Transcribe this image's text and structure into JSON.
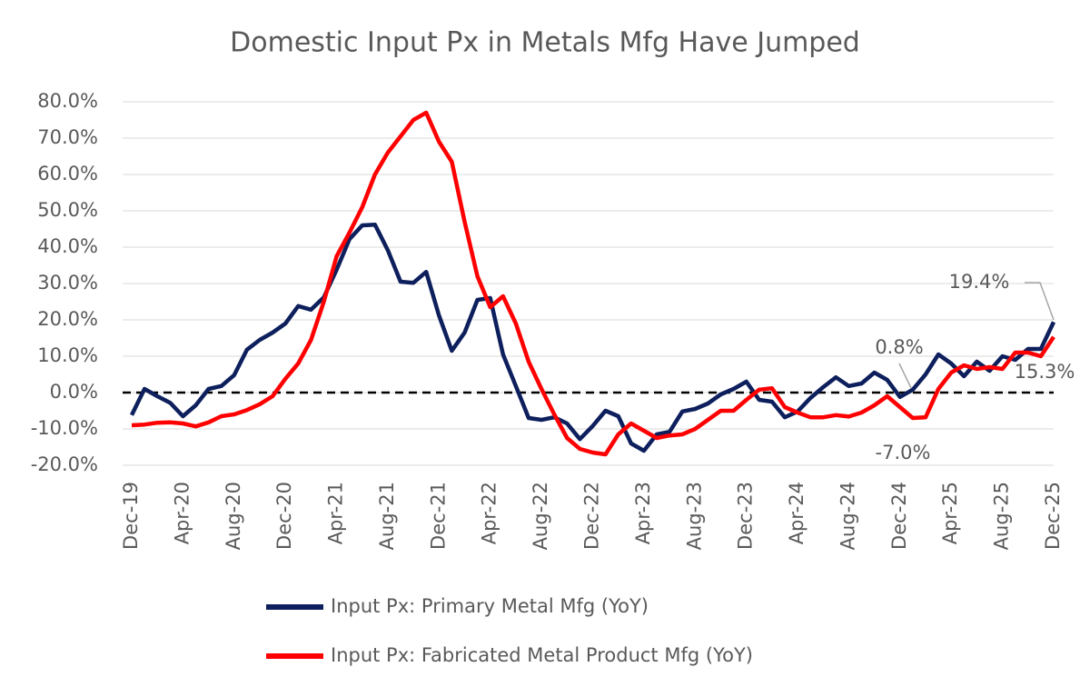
{
  "chart_data": {
    "type": "line",
    "title": "Domestic Input Px in Metals Mfg Have Jumped",
    "categories": [
      "Dec-19",
      null,
      null,
      null,
      "Apr-20",
      null,
      null,
      null,
      "Aug-20",
      null,
      null,
      null,
      "Dec-20",
      null,
      null,
      null,
      "Apr-21",
      null,
      null,
      null,
      "Aug-21",
      null,
      null,
      null,
      "Dec-21",
      null,
      null,
      null,
      "Apr-22",
      null,
      null,
      null,
      "Aug-22",
      null,
      null,
      null,
      "Dec-22",
      null,
      null,
      null,
      "Apr-23",
      null,
      null,
      null,
      "Aug-23",
      null,
      null,
      null,
      "Dec-23",
      null,
      null,
      null,
      "Apr-24",
      null,
      null,
      null,
      "Aug-24",
      null,
      null,
      null,
      "Dec-24",
      null,
      null,
      null,
      "Apr-25",
      null,
      null,
      null,
      "Aug-25",
      null,
      null,
      null,
      "Dec-25"
    ],
    "series": [
      {
        "name": "Input Px: Primary Metal Mfg (YoY)",
        "color": "#0d1f5c",
        "values": [
          -6.2,
          1,
          -1,
          -2.8,
          -6.5,
          -3.5,
          1,
          1.8,
          4.8,
          11.8,
          14.5,
          16.5,
          19,
          23.8,
          22.8,
          26.2,
          33.8,
          42.2,
          46,
          46.2,
          39.2,
          30.5,
          30.2,
          33.2,
          21.2,
          11.5,
          16.5,
          25.5,
          26,
          10.5,
          1.8,
          -7,
          -7.5,
          -6.8,
          -8.5,
          -12.8,
          -9.2,
          -5,
          -6.5,
          -14,
          -16,
          -11.5,
          -10.8,
          -5.2,
          -4.5,
          -3,
          -0.5,
          1.0,
          3.0,
          -2,
          -2.5,
          -6.8,
          -5.2,
          -1.5,
          1.5,
          4.2,
          1.8,
          2.5,
          5.5,
          3.5,
          -1.2,
          0.8,
          5.0,
          10.5,
          8.0,
          4.5,
          8.5,
          6.0,
          10.0,
          9.0,
          12.0,
          12.0,
          19.4
        ]
      },
      {
        "name": "Input Px: Fabricated Metal Product Mfg (YoY)",
        "color": "#ff0000",
        "values": [
          -9,
          -8.8,
          -8.3,
          -8.2,
          -8.5,
          -9.3,
          -8.2,
          -6.5,
          -6,
          -4.8,
          -3.2,
          -1,
          3.8,
          8,
          14.5,
          25,
          37.5,
          44,
          51,
          60,
          66,
          70.5,
          75,
          77,
          69,
          63.5,
          47,
          32,
          23.5,
          26.5,
          19,
          8.5,
          1,
          -6,
          -12.5,
          -15.5,
          -16.5,
          -17,
          -11.5,
          -8.5,
          -10.5,
          -12.5,
          -11.8,
          -11.5,
          -10,
          -7.5,
          -5,
          -5,
          -2,
          0.8,
          1.2,
          -4,
          -5.5,
          -6.8,
          -6.8,
          -6.2,
          -6.6,
          -5.5,
          -3.5,
          -1,
          -4,
          -7.0,
          -6.8,
          1,
          5.5,
          7.5,
          6.5,
          7,
          6.5,
          11,
          11,
          10,
          15.3
        ]
      }
    ],
    "ylim": [
      -20,
      80
    ],
    "yticks": [
      {
        "value": -20,
        "label": "-20.0%"
      },
      {
        "value": -10,
        "label": "-10.0%"
      },
      {
        "value": 0,
        "label": "0.0%"
      },
      {
        "value": 10,
        "label": "10.0%"
      },
      {
        "value": 20,
        "label": "20.0%"
      },
      {
        "value": 30,
        "label": "30.0%"
      },
      {
        "value": 40,
        "label": "40.0%"
      },
      {
        "value": 50,
        "label": "50.0%"
      },
      {
        "value": 60,
        "label": "60.0%"
      },
      {
        "value": 70,
        "label": "70.0%"
      },
      {
        "value": 80,
        "label": "80.0%"
      }
    ],
    "grid": true,
    "annotations": [
      "19.4%",
      "15.3%",
      "0.8%",
      "-7.0%"
    ]
  }
}
